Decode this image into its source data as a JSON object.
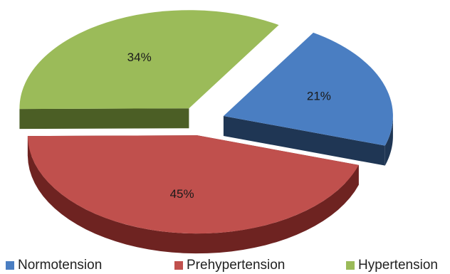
{
  "chart_data": {
    "type": "pie",
    "style": "3d-exploded",
    "title": "",
    "slices": [
      {
        "label": "Normotension",
        "value": 21,
        "display": "21%",
        "color": "#4a7ec2",
        "side_color": "#1f3654"
      },
      {
        "label": "Prehypertension",
        "value": 45,
        "display": "45%",
        "color": "#c0504d",
        "side_color": "#6e2321"
      },
      {
        "label": "Hypertension",
        "value": 34,
        "display": "34%",
        "color": "#9bbb59",
        "side_color": "#4b5e25"
      }
    ],
    "legend": {
      "placement": "bottom",
      "items": [
        {
          "label": "Normotension",
          "color": "#4a7ec2"
        },
        {
          "label": "Prehypertension",
          "color": "#c0504d"
        },
        {
          "label": "Hypertension",
          "color": "#9bbb59"
        }
      ]
    }
  }
}
